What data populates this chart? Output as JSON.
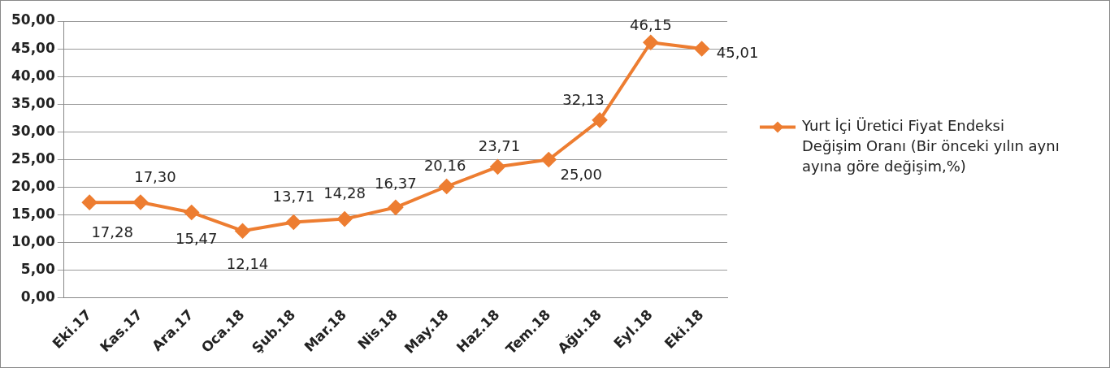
{
  "chart_data": {
    "type": "line",
    "categories": [
      "Eki.17",
      "Kas.17",
      "Ara.17",
      "Oca.18",
      "Şub.18",
      "Mar.18",
      "Nis.18",
      "May.18",
      "Haz.18",
      "Tem.18",
      "Ağu.18",
      "Eyl.18",
      "Eki.18"
    ],
    "series": [
      {
        "name": "Yurt İçi Üretici Fiyat Endeksi Değişim Oranı (Bir önceki yılın aynı ayına göre değişim,%)",
        "color": "#ed7d31",
        "values": [
          17.28,
          17.3,
          15.47,
          12.14,
          13.71,
          14.28,
          16.37,
          20.16,
          23.71,
          25.0,
          32.13,
          46.15,
          45.01
        ],
        "value_labels": [
          "17,28",
          "17,30",
          "15,47",
          "12,14",
          "13,71",
          "14,28",
          "16,37",
          "20,16",
          "23,71",
          "25,00",
          "32,13",
          "46,15",
          "45,01"
        ]
      }
    ],
    "ylim": [
      0,
      50
    ],
    "yticks": [
      {
        "value": 0,
        "label": "0,00"
      },
      {
        "value": 5,
        "label": "5,00"
      },
      {
        "value": 10,
        "label": "10,00"
      },
      {
        "value": 15,
        "label": "15,00"
      },
      {
        "value": 20,
        "label": "20,00"
      },
      {
        "value": 25,
        "label": "25,00"
      },
      {
        "value": 30,
        "label": "30,00"
      },
      {
        "value": 35,
        "label": "35,00"
      },
      {
        "value": 40,
        "label": "40,00"
      },
      {
        "value": 45,
        "label": "45,00"
      },
      {
        "value": 50,
        "label": "50,00"
      }
    ],
    "grid": "y",
    "legend": "right",
    "marker": "diamond",
    "line_style": "solid"
  }
}
